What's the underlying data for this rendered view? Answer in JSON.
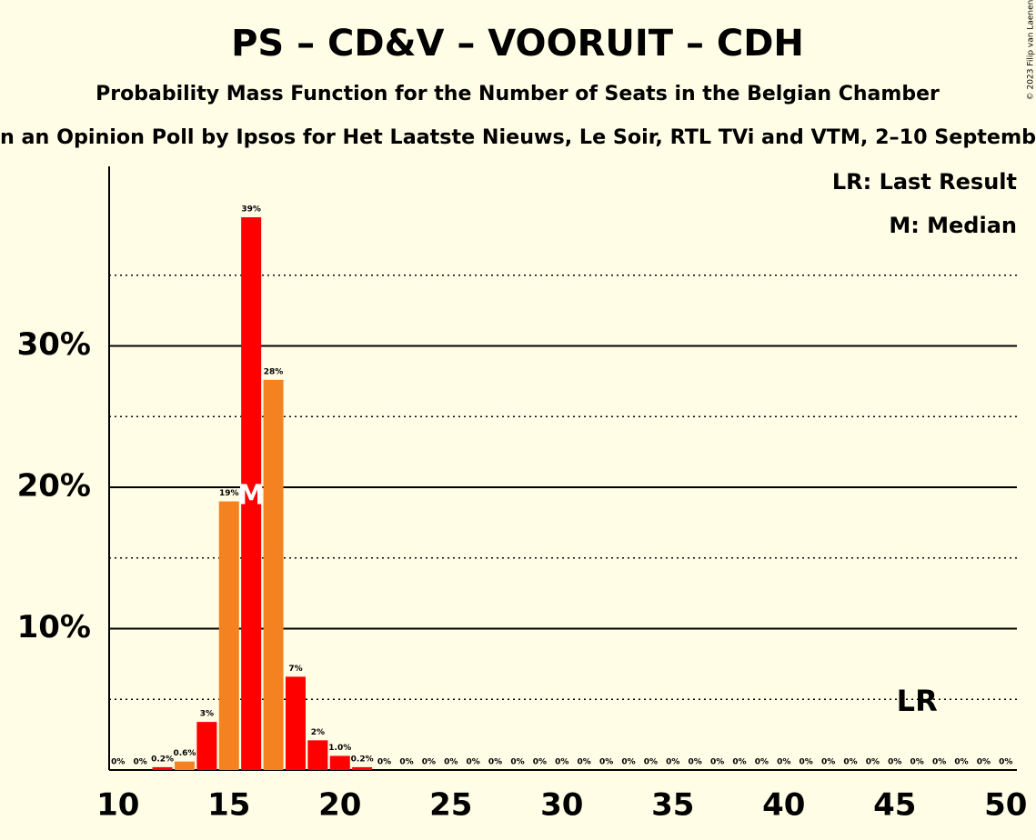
{
  "chart_data": {
    "type": "bar",
    "title": "PS – CD&V – VOORUIT – CDH",
    "subtitle": "Probability Mass Function for the Number of Seats in the Belgian Chamber",
    "subtitle2": "n an Opinion Poll by Ipsos for Het Laatste Nieuws, Le Soir, RTL TVi and VTM, 2–10 Septemb",
    "copyright": "© 2023 Filip van Laenen",
    "legend": [
      "LR: Last Result",
      "M: Median"
    ],
    "x": [
      10,
      11,
      12,
      13,
      14,
      15,
      16,
      17,
      18,
      19,
      20,
      21,
      22,
      23,
      24,
      25,
      26,
      27,
      28,
      29,
      30,
      31,
      32,
      33,
      34,
      35,
      36,
      37,
      38,
      39,
      40,
      41,
      42,
      43,
      44,
      45,
      46,
      47,
      48,
      49,
      50
    ],
    "values": [
      0,
      0,
      0.2,
      0.6,
      3.4,
      19,
      39.1,
      27.6,
      6.6,
      2.1,
      1.0,
      0.2,
      0,
      0,
      0,
      0,
      0,
      0,
      0,
      0,
      0,
      0,
      0,
      0,
      0,
      0,
      0,
      0,
      0,
      0,
      0,
      0,
      0,
      0,
      0,
      0,
      0,
      0,
      0,
      0,
      0
    ],
    "value_labels": [
      "0%",
      "0%",
      "0.2%",
      "0.6%",
      "3%",
      "19%",
      "39%",
      "28%",
      "7%",
      "2%",
      "1.0%",
      "0.2%",
      "0%",
      "0%",
      "0%",
      "0%",
      "0%",
      "0%",
      "0%",
      "0%",
      "0%",
      "0%",
      "0%",
      "0%",
      "0%",
      "0%",
      "0%",
      "0%",
      "0%",
      "0%",
      "0%",
      "0%",
      "0%",
      "0%",
      "0%",
      "0%",
      "0%",
      "0%",
      "0%",
      "0%",
      "0%"
    ],
    "colors": [
      "#ff0000",
      "#f58220",
      "#ff0000",
      "#f58220",
      "#ff0000",
      "#f58220",
      "#ff0000",
      "#f58220",
      "#ff0000",
      "#ff0000",
      "#ff0000",
      "#ff0000",
      "#ff0000",
      "#f58220",
      "#ff0000",
      "#f58220",
      "#ff0000",
      "#f58220",
      "#ff0000",
      "#f58220",
      "#ff0000",
      "#f58220",
      "#ff0000",
      "#f58220",
      "#ff0000",
      "#f58220",
      "#ff0000",
      "#f58220",
      "#ff0000",
      "#f58220",
      "#ff0000",
      "#f58220",
      "#ff0000",
      "#f58220",
      "#ff0000",
      "#f58220",
      "#ff0000",
      "#f58220",
      "#ff0000",
      "#f58220",
      "#ff0000"
    ],
    "xlim": [
      9.6,
      50.5
    ],
    "xticks": [
      10,
      15,
      20,
      25,
      30,
      35,
      40,
      45,
      50
    ],
    "ylim": [
      0,
      42.7
    ],
    "yticks": [
      {
        "value": 10,
        "label": "10%"
      },
      {
        "value": 20,
        "label": "20%"
      },
      {
        "value": 30,
        "label": "30%"
      }
    ],
    "minor_yticks": [
      5,
      15,
      25,
      35
    ],
    "median": 16,
    "median_label": "M",
    "last_result": 46,
    "last_result_label": "LR"
  }
}
